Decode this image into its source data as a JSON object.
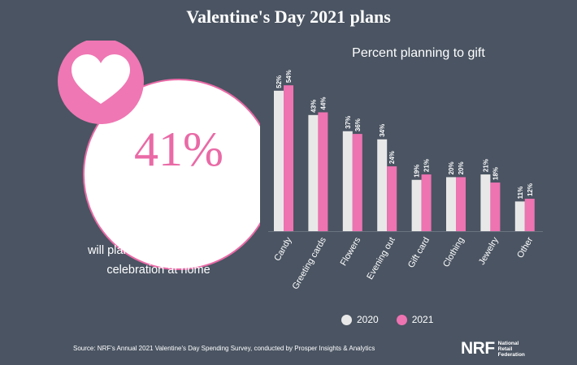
{
  "title": "Valentine's Day 2021 plans",
  "infographic": {
    "percent": "41%",
    "caption_line1": "will plan a special dinner or",
    "caption_line2": "celebration at home"
  },
  "colors": {
    "background": "#4a5462",
    "series_2020": "#e8e8e8",
    "series_2021": "#ee73b1",
    "accent_pink": "#e96aa6"
  },
  "chart_data": {
    "type": "bar",
    "title": "Percent planning to gift",
    "categories": [
      "Candy",
      "Greeting cards",
      "Flowers",
      "Evening out",
      "Gift card",
      "Clothing",
      "Jewelry",
      "Other"
    ],
    "series": [
      {
        "name": "2020",
        "values": [
          52,
          43,
          37,
          34,
          19,
          20,
          21,
          11
        ],
        "labels": [
          "52%",
          "43%",
          "37%",
          "34%",
          "19%",
          "20%",
          "21%",
          "11%"
        ]
      },
      {
        "name": "2021",
        "values": [
          54,
          44,
          36,
          24,
          21,
          20,
          18,
          12
        ],
        "labels": [
          "54%",
          "44%",
          "36%",
          "24%",
          "21%",
          "20%",
          "18%",
          "12%"
        ]
      }
    ],
    "ylim": [
      0,
      60
    ],
    "grid": false,
    "legend": "bottom",
    "xlabel": "",
    "ylabel": ""
  },
  "source": "Source: NRF's Annual 2021 Valentine's Day Spending Survey, conducted by Prosper Insights & Analytics",
  "logo": {
    "mark": "NRF",
    "line1": "National",
    "line2": "Retail",
    "line3": "Federation"
  }
}
